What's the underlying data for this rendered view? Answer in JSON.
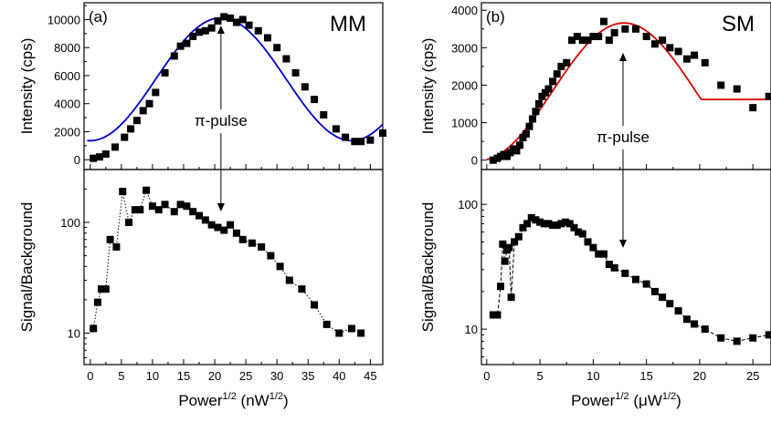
{
  "chart_data": [
    {
      "panel": "(a)",
      "label": "MM",
      "type": "scatter",
      "xlim": [
        -1,
        47
      ],
      "xticks": [
        0,
        5,
        10,
        15,
        20,
        25,
        30,
        35,
        40,
        45
      ],
      "xlabel": {
        "main": "Power",
        "sup1": "1/2",
        "mid": " (nW",
        "sup2": "1/2",
        "end": ")"
      },
      "annotation": {
        "text": "π-pulse",
        "x": 21
      },
      "top": {
        "ylabel": "Intensity (cps)",
        "ylim": [
          -700,
          11200
        ],
        "yticks": [
          0,
          2000,
          4000,
          6000,
          8000,
          10000
        ],
        "fit_color": "#0000cc",
        "fit": {
          "A": 4380,
          "C": 5740,
          "P": 42,
          "x0": 21
        },
        "x": [
          0.5,
          1.5,
          2.5,
          4,
          5.5,
          6.5,
          7.5,
          8.5,
          9.5,
          10.5,
          12,
          13.5,
          14.5,
          15.5,
          16.5,
          17.5,
          18.5,
          19.5,
          20.5,
          21.5,
          22.5,
          23.5,
          24.5,
          25.5,
          27,
          28.5,
          30,
          31.5,
          33,
          34.5,
          36,
          37.5,
          39.5,
          41,
          42.5,
          43.5,
          45,
          47
        ],
        "y": [
          100,
          200,
          400,
          900,
          1600,
          2200,
          2800,
          3500,
          4000,
          4800,
          6200,
          7400,
          8100,
          8300,
          8800,
          9100,
          9200,
          9400,
          9900,
          10200,
          10100,
          9800,
          10000,
          9600,
          9200,
          8700,
          8000,
          7200,
          6200,
          5200,
          4300,
          3200,
          2200,
          1600,
          1300,
          1300,
          1400,
          1900
        ]
      },
      "bottom": {
        "ylabel": "Signal/Background",
        "ylog": true,
        "ylim": [
          5.2,
          300
        ],
        "yticks": [
          10,
          100
        ],
        "connector": "dotted",
        "x": [
          0.5,
          1.2,
          1.8,
          2.5,
          3.2,
          4.2,
          5.2,
          6.2,
          7.2,
          8,
          9,
          10,
          11,
          12,
          13.5,
          14.5,
          15.5,
          16.5,
          17.5,
          18.5,
          19.5,
          20.5,
          21.5,
          22.5,
          23.5,
          24.5,
          26,
          27.5,
          29,
          30.5,
          32,
          34,
          36,
          38,
          40,
          42,
          43.5
        ],
        "y": [
          11,
          19,
          25,
          25,
          70,
          60,
          190,
          100,
          130,
          130,
          195,
          140,
          130,
          145,
          125,
          145,
          140,
          125,
          115,
          105,
          95,
          90,
          85,
          95,
          80,
          70,
          65,
          60,
          50,
          40,
          30,
          25,
          18,
          12,
          10,
          11,
          10
        ]
      }
    },
    {
      "panel": "(b)",
      "label": "SM",
      "type": "scatter",
      "xlim": [
        -0.5,
        26.7
      ],
      "xticks": [
        0,
        5,
        10,
        15,
        20,
        25
      ],
      "xlabel": {
        "main": "Power",
        "sup1": "1/2",
        "mid": " (μW",
        "sup2": "1/2",
        "end": ")"
      },
      "annotation": {
        "text": "π-pulse",
        "x": 12.8
      },
      "top": {
        "ylabel": "Intensity (cps)",
        "ylim": [
          -250,
          4200
        ],
        "yticks": [
          0,
          1000,
          2000,
          3000,
          4000
        ],
        "fit_color": "#dd0000",
        "fit": {
          "A": 1830,
          "C": 1830,
          "P": 27,
          "x0": 12.9,
          "plateau": 1620
        },
        "x": [
          0.6,
          1.0,
          1.3,
          1.6,
          1.9,
          2.2,
          2.5,
          2.8,
          3.1,
          3.4,
          3.7,
          4.0,
          4.3,
          4.6,
          4.9,
          5.2,
          5.5,
          5.8,
          6.2,
          6.6,
          7.0,
          7.5,
          8.0,
          8.5,
          9.0,
          9.5,
          10.0,
          10.5,
          11.0,
          11.5,
          12.0,
          13.0,
          14.0,
          15.0,
          15.8,
          16.5,
          17.2,
          18.0,
          18.8,
          19.5,
          20.5,
          22.0,
          23.5,
          25.0,
          26.5
        ],
        "y": [
          0,
          50,
          100,
          150,
          100,
          200,
          300,
          250,
          400,
          600,
          700,
          900,
          1100,
          1300,
          1500,
          1700,
          1800,
          1900,
          2100,
          2300,
          2500,
          2600,
          3200,
          3300,
          3200,
          3200,
          3300,
          3300,
          3700,
          3200,
          3400,
          3500,
          3500,
          3300,
          3100,
          3200,
          3000,
          2900,
          2700,
          2800,
          2600,
          2000,
          1900,
          1400,
          1700
        ]
      },
      "bottom": {
        "ylabel": "Signal/Background",
        "ylog": true,
        "ylim": [
          5.2,
          190
        ],
        "yticks": [
          10,
          100
        ],
        "connector": "dashed",
        "x": [
          0.6,
          1.0,
          1.3,
          1.5,
          1.7,
          1.9,
          2.1,
          2.3,
          2.6,
          3.0,
          3.4,
          3.8,
          4.2,
          4.6,
          5.0,
          5.4,
          5.8,
          6.2,
          6.6,
          7.0,
          7.4,
          7.8,
          8.2,
          8.6,
          9.0,
          9.5,
          10.0,
          10.5,
          11.0,
          11.5,
          12.0,
          13.0,
          14.0,
          15.0,
          15.8,
          16.5,
          17.2,
          18.0,
          18.8,
          19.5,
          20.5,
          22.0,
          23.5,
          25.0,
          26.5
        ],
        "y": [
          13,
          13,
          22,
          48,
          35,
          43,
          45,
          18,
          50,
          55,
          65,
          70,
          78,
          75,
          72,
          70,
          70,
          68,
          68,
          70,
          72,
          70,
          65,
          60,
          58,
          50,
          45,
          40,
          40,
          33,
          31,
          28,
          25,
          23,
          20,
          18,
          16,
          14,
          12,
          11,
          10,
          8.5,
          8,
          8.5,
          9
        ]
      }
    }
  ]
}
